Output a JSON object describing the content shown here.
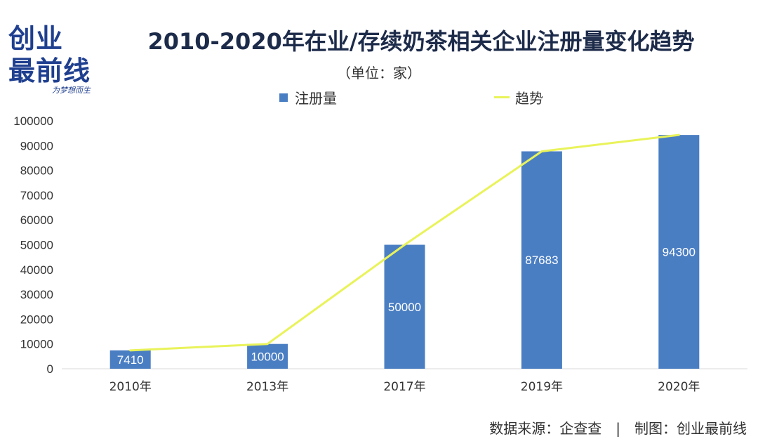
{
  "logo": {
    "line1": "创业",
    "line2": "最前线",
    "tagline": "为梦想而生"
  },
  "chart_data": {
    "type": "bar",
    "title": "2010-2020年在业/存续奶茶相关企业注册量变化趋势",
    "subtitle": "（单位：家）",
    "categories": [
      "2010年",
      "2013年",
      "2017年",
      "2019年",
      "2020年"
    ],
    "series": [
      {
        "name": "注册量",
        "type": "bar",
        "values": [
          7410,
          10000,
          50000,
          87683,
          94300
        ],
        "color": "#4a7ec3"
      },
      {
        "name": "趋势",
        "type": "line",
        "values": [
          7410,
          10000,
          50000,
          87683,
          94300
        ],
        "color": "#e9f35a"
      }
    ],
    "data_labels": [
      "7410",
      "10000",
      "50000",
      "87683",
      "94300"
    ],
    "yticks": [
      0,
      10000,
      20000,
      30000,
      40000,
      50000,
      60000,
      70000,
      80000,
      90000,
      100000
    ],
    "ylim": [
      0,
      100000
    ],
    "legend_position": "top-center",
    "grid": false
  },
  "footer": {
    "source": "数据来源：企查查　|　制图：创业最前线"
  }
}
